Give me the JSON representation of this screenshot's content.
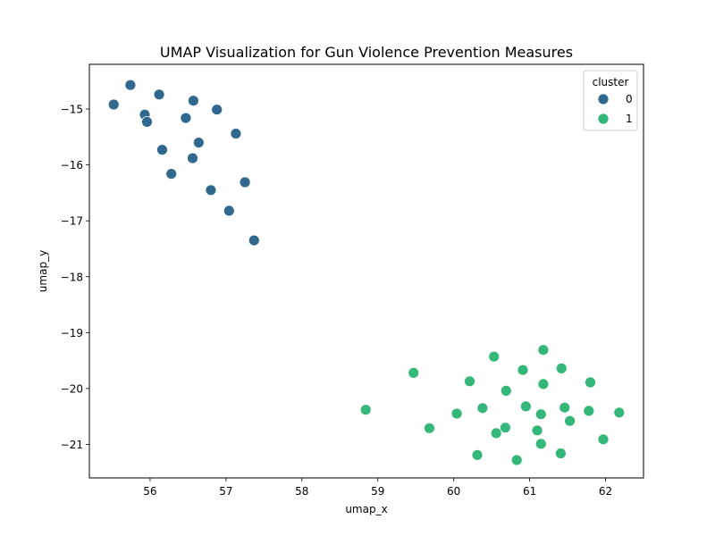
{
  "chart_data": {
    "type": "scatter",
    "title": "UMAP Visualization for Gun Violence Prevention Measures",
    "xlabel": "umap_x",
    "ylabel": "umap_y",
    "xlim": [
      55.2,
      62.5
    ],
    "ylim": [
      -21.6,
      -14.2
    ],
    "xticks": [
      56,
      57,
      58,
      59,
      60,
      61,
      62
    ],
    "yticks": [
      -15,
      -16,
      -17,
      -18,
      -19,
      -20,
      -21
    ],
    "grid": false,
    "legend": {
      "title": "cluster",
      "position": "top-right",
      "entries": [
        "0",
        "1"
      ]
    },
    "series": [
      {
        "name": "0",
        "color": "#31688e",
        "points": [
          [
            55.52,
            -14.92
          ],
          [
            55.74,
            -14.57
          ],
          [
            56.12,
            -14.74
          ],
          [
            56.57,
            -14.85
          ],
          [
            56.88,
            -15.01
          ],
          [
            55.93,
            -15.1
          ],
          [
            55.96,
            -15.23
          ],
          [
            56.47,
            -15.16
          ],
          [
            57.13,
            -15.44
          ],
          [
            56.64,
            -15.6
          ],
          [
            56.16,
            -15.73
          ],
          [
            56.56,
            -15.88
          ],
          [
            56.28,
            -16.16
          ],
          [
            57.25,
            -16.31
          ],
          [
            56.8,
            -16.45
          ],
          [
            57.04,
            -16.82
          ],
          [
            57.37,
            -17.35
          ]
        ]
      },
      {
        "name": "1",
        "color": "#35b779",
        "points": [
          [
            61.18,
            -19.31
          ],
          [
            60.53,
            -19.43
          ],
          [
            61.42,
            -19.64
          ],
          [
            60.91,
            -19.67
          ],
          [
            59.47,
            -19.72
          ],
          [
            60.21,
            -19.87
          ],
          [
            61.8,
            -19.89
          ],
          [
            61.18,
            -19.92
          ],
          [
            60.69,
            -20.04
          ],
          [
            60.95,
            -20.32
          ],
          [
            61.46,
            -20.34
          ],
          [
            60.38,
            -20.35
          ],
          [
            58.84,
            -20.38
          ],
          [
            61.78,
            -20.4
          ],
          [
            60.04,
            -20.45
          ],
          [
            61.15,
            -20.46
          ],
          [
            62.18,
            -20.43
          ],
          [
            61.53,
            -20.58
          ],
          [
            59.68,
            -20.71
          ],
          [
            60.68,
            -20.7
          ],
          [
            61.1,
            -20.75
          ],
          [
            60.56,
            -20.8
          ],
          [
            61.97,
            -20.91
          ],
          [
            61.15,
            -20.99
          ],
          [
            61.41,
            -21.16
          ],
          [
            60.31,
            -21.19
          ],
          [
            60.83,
            -21.28
          ]
        ]
      }
    ]
  }
}
